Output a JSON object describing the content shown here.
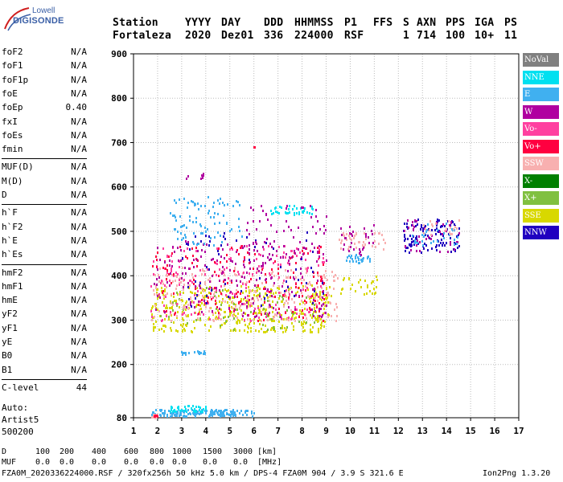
{
  "logo": {
    "line1": "Lowell",
    "line2": "DIGISONDE"
  },
  "header": {
    "labels": [
      "Station",
      "YYYY",
      "DAY",
      "DDD",
      "HHMMSS",
      "P1",
      "FFS",
      "S",
      "AXN",
      "PPS",
      "IGA",
      "PS"
    ],
    "values": [
      "Fortaleza",
      "2020",
      "Dez01",
      "336",
      "224000",
      "RSF",
      "",
      "1",
      "714",
      "100",
      "10+",
      "11"
    ]
  },
  "params_group1": [
    {
      "name": "foF2",
      "value": "N/A"
    },
    {
      "name": "foF1",
      "value": "N/A"
    },
    {
      "name": "foF1p",
      "value": "N/A"
    },
    {
      "name": "foE",
      "value": "N/A"
    },
    {
      "name": "foEp",
      "value": "0.40"
    },
    {
      "name": "fxI",
      "value": "N/A"
    },
    {
      "name": "foEs",
      "value": "N/A"
    },
    {
      "name": "fmin",
      "value": "N/A"
    }
  ],
  "params_group2": [
    {
      "name": "MUF(D)",
      "value": "N/A"
    },
    {
      "name": "M(D)",
      "value": "N/A"
    },
    {
      "name": "D",
      "value": "N/A"
    }
  ],
  "params_group3": [
    {
      "name": "h`F",
      "value": "N/A"
    },
    {
      "name": "h`F2",
      "value": "N/A"
    },
    {
      "name": "h`E",
      "value": "N/A"
    },
    {
      "name": "h`Es",
      "value": "N/A"
    }
  ],
  "params_group4": [
    {
      "name": "hmF2",
      "value": "N/A"
    },
    {
      "name": "hmF1",
      "value": "N/A"
    },
    {
      "name": "hmE",
      "value": "N/A"
    },
    {
      "name": "yF2",
      "value": "N/A"
    },
    {
      "name": "yF1",
      "value": "N/A"
    },
    {
      "name": "yE",
      "value": "N/A"
    },
    {
      "name": "B0",
      "value": "N/A"
    },
    {
      "name": "B1",
      "value": "N/A"
    }
  ],
  "clevel": {
    "name": "C-level",
    "value": "44"
  },
  "auto": {
    "line1": "Auto:",
    "line2": "Artist5",
    "line3": "500200"
  },
  "legend": [
    {
      "label": "NoVal",
      "color": "#808080"
    },
    {
      "label": "NNE",
      "color": "#00e0f0"
    },
    {
      "label": "E",
      "color": "#40b0f0"
    },
    {
      "label": "W",
      "color": "#b000a0"
    },
    {
      "label": "Vo-",
      "color": "#ff40a0"
    },
    {
      "label": "Vo+",
      "color": "#ff0040"
    },
    {
      "label": "SSW",
      "color": "#f8b0b0"
    },
    {
      "label": "X-",
      "color": "#008000"
    },
    {
      "label": "X+",
      "color": "#80c040"
    },
    {
      "label": "SSE",
      "color": "#d8d800"
    },
    {
      "label": "NNW",
      "color": "#2000c0"
    }
  ],
  "chart_data": {
    "type": "scatter",
    "title": "",
    "xlabel": "",
    "ylabel": "",
    "xlim": [
      1,
      17
    ],
    "ylim": [
      80,
      900
    ],
    "x_ticks": [
      1,
      2,
      3,
      4,
      5,
      6,
      7,
      8,
      9,
      10,
      11,
      12,
      13,
      14,
      15,
      16,
      17
    ],
    "y_ticks": [
      80,
      200,
      300,
      400,
      500,
      600,
      700,
      800,
      900
    ],
    "grid": true,
    "clusters": [
      {
        "series": "E",
        "x": [
          1.7,
          6.0
        ],
        "y": [
          85,
          100
        ],
        "n": 160
      },
      {
        "series": "NNE",
        "x": [
          2.5,
          4.0
        ],
        "y": [
          95,
          110
        ],
        "n": 40
      },
      {
        "series": "SSW",
        "x": [
          1.7,
          2.0
        ],
        "y": [
          82,
          90
        ],
        "n": 10
      },
      {
        "series": "Vo+",
        "x": [
          1.8,
          2.0
        ],
        "y": [
          82,
          88
        ],
        "n": 6
      },
      {
        "series": "E",
        "x": [
          2.8,
          4.0
        ],
        "y": [
          225,
          232
        ],
        "n": 20
      },
      {
        "series": "SSE",
        "x": [
          1.7,
          9.2
        ],
        "y": [
          275,
          380
        ],
        "n": 420
      },
      {
        "series": "X+",
        "x": [
          2.0,
          8.5
        ],
        "y": [
          280,
          380
        ],
        "n": 60
      },
      {
        "series": "SSW",
        "x": [
          1.7,
          9.5
        ],
        "y": [
          300,
          420
        ],
        "n": 260
      },
      {
        "series": "Vo-",
        "x": [
          1.7,
          9.0
        ],
        "y": [
          300,
          470
        ],
        "n": 180
      },
      {
        "series": "Vo+",
        "x": [
          1.7,
          9.0
        ],
        "y": [
          300,
          470
        ],
        "n": 160
      },
      {
        "series": "W",
        "x": [
          1.8,
          9.0
        ],
        "y": [
          310,
          480
        ],
        "n": 200
      },
      {
        "series": "NNW",
        "x": [
          3.0,
          9.0
        ],
        "y": [
          330,
          500
        ],
        "n": 60
      },
      {
        "series": "E",
        "x": [
          2.5,
          5.5
        ],
        "y": [
          470,
          580
        ],
        "n": 90
      },
      {
        "series": "NNE",
        "x": [
          6.5,
          8.5
        ],
        "y": [
          540,
          560
        ],
        "n": 40
      },
      {
        "series": "W",
        "x": [
          5.5,
          9.0
        ],
        "y": [
          430,
          560
        ],
        "n": 60
      },
      {
        "series": "SSE",
        "x": [
          9.5,
          11.2
        ],
        "y": [
          360,
          400
        ],
        "n": 30
      },
      {
        "series": "E",
        "x": [
          9.8,
          10.8
        ],
        "y": [
          430,
          450
        ],
        "n": 30
      },
      {
        "series": "SSW",
        "x": [
          9.5,
          11.5
        ],
        "y": [
          460,
          500
        ],
        "n": 40
      },
      {
        "series": "W",
        "x": [
          9.5,
          11.0
        ],
        "y": [
          450,
          520
        ],
        "n": 30
      },
      {
        "series": "NNW",
        "x": [
          12.2,
          14.5
        ],
        "y": [
          455,
          530
        ],
        "n": 110
      },
      {
        "series": "W",
        "x": [
          12.2,
          14.5
        ],
        "y": [
          455,
          530
        ],
        "n": 40
      },
      {
        "series": "E",
        "x": [
          12.5,
          14.5
        ],
        "y": [
          470,
          520
        ],
        "n": 30
      },
      {
        "series": "SSW",
        "x": [
          13.0,
          14.5
        ],
        "y": [
          490,
          530
        ],
        "n": 20
      },
      {
        "series": "W",
        "x": [
          3.0,
          4.0
        ],
        "y": [
          620,
          635
        ],
        "n": 8
      },
      {
        "series": "Vo+",
        "x": [
          5.9,
          6.0
        ],
        "y": [
          690,
          710
        ],
        "n": 2
      }
    ]
  },
  "bottom": {
    "d_label": "D",
    "d_values": [
      "100",
      "200",
      "400",
      "600",
      "800",
      "1000",
      "1500",
      "3000",
      "[km]"
    ],
    "muf_label": "MUF",
    "muf_values": [
      "0.0",
      "0.0",
      "0.0",
      "0.0",
      "0.0",
      "0.0",
      "0.0",
      "0.0",
      "[MHz]"
    ],
    "footer": "FZA0M_2020336224000.RSF / 320fx256h 50 kHz 5.0 km / DPS-4 FZA0M 904 / 3.9 S 321.6 E",
    "footer_right": "Ion2Png 1.3.20"
  }
}
